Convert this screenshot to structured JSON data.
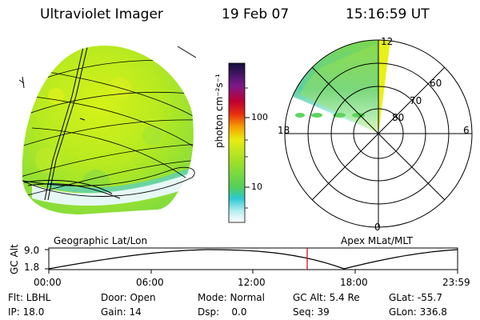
{
  "header": {
    "instrument": "Ultraviolet Imager",
    "date": "19 Feb 07",
    "time": "15:16:59 UT"
  },
  "colorbar": {
    "label": "photon cm⁻²s⁻¹",
    "ticks": [
      "100",
      "10"
    ]
  },
  "polar_plot": {
    "mlat_labels": [
      "60",
      "70",
      "80"
    ],
    "mlt_labels": [
      "12",
      "18",
      "6",
      "0"
    ]
  },
  "panel_labels": {
    "left": "Geographic Lat/Lon",
    "right": "Apex MLat/MLT"
  },
  "altitude_plot": {
    "axis_title": "GC Alt",
    "y_ticks": [
      "9.0",
      "1.8"
    ],
    "time_ticks": [
      "00:00",
      "06:00",
      "12:00",
      "18:00",
      "23:59"
    ],
    "current_time_color": "#d00000"
  },
  "info": {
    "filter": "Flt: LBHL",
    "door": "Door: Open",
    "mode": "Mode: Normal",
    "gc_alt": "GC Alt: 5.4 Re",
    "glat": "GLat: -55.7",
    "ip": "IP: 18.0",
    "gain": "Gain: 14",
    "dsp": "Dsp:    0.0",
    "seq": "Seq: 39",
    "glon": "GLon: 336.8"
  }
}
